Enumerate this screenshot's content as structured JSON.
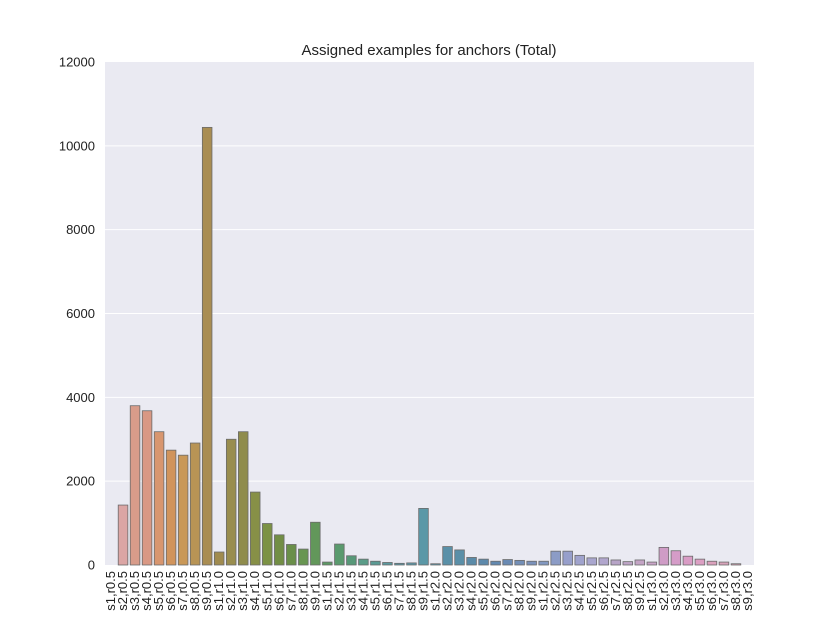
{
  "chart_data": {
    "type": "bar",
    "title": "Assigned examples for anchors (Total)",
    "xlabel": "",
    "ylabel": "",
    "ylim": [
      0,
      12000
    ],
    "yticks": [
      "0",
      "2000",
      "4000",
      "6000",
      "8000",
      "10000",
      "12000"
    ],
    "grid": true,
    "categories": [
      "s1,r0.5",
      "s2,r0.5",
      "s3,r0.5",
      "s4,r0.5",
      "s5,r0.5",
      "s6,r0.5",
      "s7,r0.5",
      "s8,r0.5",
      "s9,r0.5",
      "s1,r1.0",
      "s2,r1.0",
      "s3,r1.0",
      "s4,r1.0",
      "s5,r1.0",
      "s6,r1.0",
      "s7,r1.0",
      "s8,r1.0",
      "s9,r1.0",
      "s1,r1.5",
      "s2,r1.5",
      "s3,r1.5",
      "s4,r1.5",
      "s5,r1.5",
      "s6,r1.5",
      "s7,r1.5",
      "s8,r1.5",
      "s9,r1.5",
      "s1,r2.0",
      "s2,r2.0",
      "s3,r2.0",
      "s4,r2.0",
      "s5,r2.0",
      "s6,r2.0",
      "s7,r2.0",
      "s8,r2.0",
      "s9,r2.0",
      "s1,r2.5",
      "s2,r2.5",
      "s3,r2.5",
      "s4,r2.5",
      "s5,r2.5",
      "s6,r2.5",
      "s7,r2.5",
      "s8,r2.5",
      "s9,r2.5",
      "s1,r3.0",
      "s2,r3.0",
      "s3,r3.0",
      "s4,r3.0",
      "s5,r3.0",
      "s6,r3.0",
      "s7,r3.0",
      "s8,r3.0",
      "s9,r3.0"
    ],
    "values": [
      0,
      1430,
      3800,
      3680,
      3180,
      2740,
      2620,
      2910,
      10440,
      310,
      3000,
      3180,
      1740,
      990,
      720,
      490,
      380,
      1020,
      70,
      500,
      220,
      140,
      90,
      60,
      40,
      50,
      1350,
      30,
      440,
      360,
      180,
      140,
      90,
      130,
      110,
      90,
      90,
      330,
      330,
      230,
      170,
      170,
      120,
      80,
      120,
      70,
      420,
      340,
      210,
      140,
      90,
      70,
      30,
      0
    ],
    "colors": [
      "#d6a1a1",
      "#dba5a4",
      "#d89c8a",
      "#d99884",
      "#d8966f",
      "#d1945c",
      "#c99858",
      "#b89455",
      "#a98d52",
      "#a08b4f",
      "#998d4e",
      "#8f8c4c",
      "#879047",
      "#7c9245",
      "#728e45",
      "#6a8f49",
      "#689652",
      "#62975a",
      "#5c9a64",
      "#5a9a6e",
      "#579878",
      "#5a9c88",
      "#5b9b94",
      "#5b999e",
      "#5a97a6",
      "#5b98a8",
      "#5b98a7",
      "#5894aa",
      "#5a90a8",
      "#5a8fa8",
      "#5b8ba8",
      "#5d89ab",
      "#6289b0",
      "#6a8ab3",
      "#738fb7",
      "#7b92bb",
      "#8298c1",
      "#8c9cc6",
      "#979fcb",
      "#a0a3cd",
      "#a9a6ce",
      "#b1a6cd",
      "#b7a4c7",
      "#bea5c6",
      "#c4a4c5",
      "#c9a4c8",
      "#cf9cc6",
      "#d59cc8",
      "#d99cc5",
      "#dc9fc3",
      "#dba1bd",
      "#d8a3ba",
      "#d6a1b3",
      "#d49fae"
    ]
  }
}
